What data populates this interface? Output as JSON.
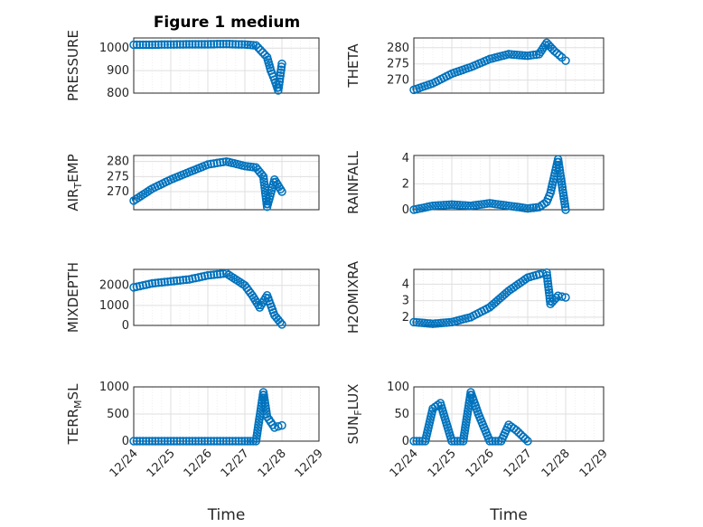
{
  "figure_title": "Figure 1 medium",
  "colors": {
    "marker": "#0072BD",
    "axis": "#262626",
    "grid": "#DFDFDF",
    "minor_grid": "#EFEFEF"
  },
  "chart_data": [
    {
      "type": "scatter",
      "ylabel": "PRESSURE",
      "yticks": [
        "800",
        "900",
        "1000"
      ],
      "ylim": [
        800,
        1045
      ],
      "x": [
        "12/24",
        "12/24.5",
        "12/25",
        "12/25.5",
        "12/26",
        "12/26.5",
        "12/27",
        "12/27.3",
        "12/27.6",
        "12/27.7",
        "12/27.8",
        "12/27.9",
        "12/28"
      ],
      "y": [
        1015,
        1015,
        1016,
        1017,
        1017,
        1018,
        1016,
        1012,
        960,
        900,
        860,
        812,
        930
      ]
    },
    {
      "type": "scatter",
      "ylabel": "THETA",
      "yticks": [
        "270",
        "275",
        "280"
      ],
      "ylim": [
        266,
        283
      ],
      "x": [
        "12/24",
        "12/24.5",
        "12/25",
        "12/25.5",
        "12/26",
        "12/26.5",
        "12/27",
        "12/27.3",
        "12/27.5",
        "12/27.7",
        "12/27.9",
        "12/28"
      ],
      "y": [
        267,
        269,
        272,
        274,
        276.5,
        278,
        277.5,
        278,
        281.5,
        279,
        277,
        276
      ]
    },
    {
      "type": "scatter",
      "ylabel": "AIR",
      "ylabel_sub": "T",
      "ylabel_end": "EMP",
      "yticks": [
        "270",
        "275",
        "280"
      ],
      "ylim": [
        264,
        282
      ],
      "x": [
        "12/24",
        "12/24.5",
        "12/25",
        "12/25.5",
        "12/26",
        "12/26.5",
        "12/27",
        "12/27.3",
        "12/27.5",
        "12/27.6",
        "12/27.8",
        "12/28"
      ],
      "y": [
        267,
        271,
        274,
        276.5,
        279,
        280,
        278.5,
        278,
        275,
        265,
        274,
        270
      ]
    },
    {
      "type": "scatter",
      "ylabel": "RAINFALL",
      "yticks": [
        "0",
        "2",
        "4"
      ],
      "ylim": [
        0,
        4.2
      ],
      "x": [
        "12/24",
        "12/24.5",
        "12/25",
        "12/25.5",
        "12/26",
        "12/26.5",
        "12/27",
        "12/27.3",
        "12/27.5",
        "12/27.6",
        "12/27.8",
        "12/28"
      ],
      "y": [
        0,
        0.3,
        0.4,
        0.3,
        0.5,
        0.3,
        0.1,
        0.2,
        0.6,
        1.3,
        3.9,
        0
      ]
    },
    {
      "type": "scatter",
      "ylabel": "MIXDEPTH",
      "yticks": [
        "0",
        "1000",
        "2000"
      ],
      "ylim": [
        0,
        2800
      ],
      "x": [
        "12/24",
        "12/24.5",
        "12/25",
        "12/25.5",
        "12/26",
        "12/26.5",
        "12/27",
        "12/27.2",
        "12/27.4",
        "12/27.6",
        "12/27.8",
        "12/28"
      ],
      "y": [
        1900,
        2100,
        2200,
        2300,
        2500,
        2600,
        2000,
        1500,
        900,
        1500,
        500,
        50
      ]
    },
    {
      "type": "scatter",
      "ylabel": "H2OMIXRA",
      "yticks": [
        "2",
        "3",
        "4"
      ],
      "ylim": [
        1.5,
        4.9
      ],
      "x": [
        "12/24",
        "12/24.5",
        "12/25",
        "12/25.5",
        "12/26",
        "12/26.5",
        "12/27",
        "12/27.3",
        "12/27.5",
        "12/27.6",
        "12/27.8",
        "12/28"
      ],
      "y": [
        1.7,
        1.6,
        1.7,
        2.0,
        2.6,
        3.6,
        4.4,
        4.6,
        4.7,
        2.8,
        3.3,
        3.2
      ]
    },
    {
      "type": "scatter",
      "ylabel": "TERR",
      "ylabel_sub": "M",
      "ylabel_end": "SL",
      "yticks": [
        "0",
        "500",
        "1000"
      ],
      "ylim": [
        0,
        1000
      ],
      "x": [
        "12/24",
        "12/24.5",
        "12/25",
        "12/25.5",
        "12/26",
        "12/26.5",
        "12/27",
        "12/27.3",
        "12/27.5",
        "12/27.6",
        "12/27.8",
        "12/28"
      ],
      "y": [
        0,
        0,
        0,
        0,
        0,
        0,
        0,
        0,
        900,
        450,
        250,
        290
      ],
      "xticklabels": [
        "12/24",
        "12/25",
        "12/26",
        "12/27",
        "12/28",
        "12/29"
      ],
      "xlabel": "Time"
    },
    {
      "type": "scatter",
      "ylabel": "SUN",
      "ylabel_sub": "F",
      "ylabel_end": "LUX",
      "yticks": [
        "0",
        "50",
        "100"
      ],
      "ylim": [
        0,
        100
      ],
      "x": [
        "12/24",
        "12/24.3",
        "12/24.5",
        "12/24.7",
        "12/25",
        "12/25.3",
        "12/25.5",
        "12/25.7",
        "12/26",
        "12/26.3",
        "12/26.5",
        "12/26.7",
        "12/27"
      ],
      "y": [
        0,
        0,
        60,
        70,
        0,
        0,
        90,
        50,
        0,
        0,
        30,
        20,
        0
      ],
      "xticklabels": [
        "12/24",
        "12/25",
        "12/26",
        "12/27",
        "12/28",
        "12/29"
      ],
      "xlabel": "Time"
    }
  ]
}
